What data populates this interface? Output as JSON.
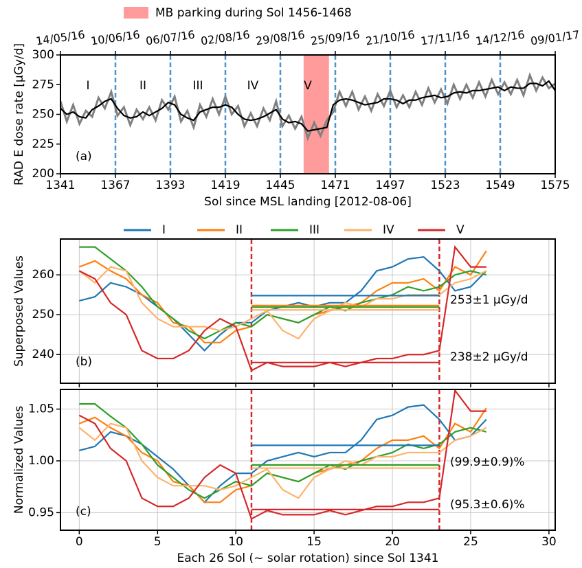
{
  "chart_data": [
    {
      "type": "line",
      "xlabel": "Sol since MSL landing [2012-08-06]",
      "ylabel": "RAD E dose rate [μGy/d]",
      "panel_label": "(a)",
      "period_labels": [
        "I",
        "II",
        "III",
        "IV",
        "V"
      ],
      "span": {
        "x": [
          1456,
          1468
        ],
        "color": "#ff9b9b",
        "label": "MB parking during Sol 1456-1468"
      },
      "vlines": [
        1367,
        1393,
        1419,
        1445,
        1471,
        1497,
        1523,
        1549
      ],
      "vline_color": "#4f94cd",
      "xlim": [
        1341,
        1575
      ],
      "xticks": [
        1341,
        1367,
        1393,
        1419,
        1445,
        1471,
        1497,
        1523,
        1549,
        1575
      ],
      "x2ticks": [
        {
          "value": 1341,
          "label": "14/05/16"
        },
        {
          "value": 1367,
          "label": "10/06/16"
        },
        {
          "value": 1393,
          "label": "06/07/16"
        },
        {
          "value": 1419,
          "label": "02/08/16"
        },
        {
          "value": 1445,
          "label": "29/08/16"
        },
        {
          "value": 1471,
          "label": "25/09/16"
        },
        {
          "value": 1497,
          "label": "21/10/16"
        },
        {
          "value": 1523,
          "label": "17/11/16"
        },
        {
          "value": 1549,
          "label": "14/12/16"
        },
        {
          "value": 1575,
          "label": "09/01/17"
        }
      ],
      "ylim": [
        200,
        300
      ],
      "yticks": [
        200,
        225,
        250,
        275,
        300
      ],
      "grid": false,
      "x": [
        1341,
        1344,
        1347,
        1350,
        1353,
        1356,
        1359,
        1362,
        1365,
        1368,
        1371,
        1374,
        1377,
        1380,
        1383,
        1386,
        1389,
        1392,
        1395,
        1398,
        1401,
        1404,
        1407,
        1410,
        1413,
        1416,
        1419,
        1422,
        1425,
        1428,
        1431,
        1434,
        1437,
        1440,
        1443,
        1446,
        1449,
        1452,
        1455,
        1458,
        1461,
        1464,
        1467,
        1470,
        1473,
        1476,
        1479,
        1482,
        1485,
        1488,
        1491,
        1494,
        1497,
        1500,
        1503,
        1506,
        1509,
        1512,
        1515,
        1518,
        1521,
        1524,
        1527,
        1530,
        1533,
        1536,
        1539,
        1542,
        1545,
        1548,
        1551,
        1554,
        1557,
        1560,
        1563,
        1566,
        1569,
        1572,
        1575
      ],
      "series": [
        {
          "color": "#808080",
          "values": [
            261,
            244,
            258,
            242,
            253,
            248,
            264,
            255,
            269,
            249,
            256,
            241,
            254,
            246,
            256,
            245,
            262,
            254,
            265,
            244,
            253,
            239,
            258,
            248,
            263,
            250,
            265,
            250,
            257,
            240,
            251,
            240,
            255,
            245,
            261,
            240,
            249,
            238,
            248,
            230,
            243,
            232,
            245,
            252,
            269,
            257,
            269,
            254,
            265,
            253,
            267,
            257,
            270,
            256,
            266,
            256,
            269,
            258,
            272,
            260,
            271,
            259,
            275,
            263,
            275,
            264,
            277,
            265,
            279,
            267,
            277,
            267,
            279,
            266,
            283,
            270,
            281,
            272,
            276
          ]
        },
        {
          "color": "#000000",
          "values": [
            255,
            250,
            252,
            248,
            247,
            254,
            257,
            261,
            263,
            255,
            249,
            247,
            248,
            252,
            249,
            252,
            255,
            260,
            258,
            250,
            247,
            245,
            252,
            254,
            256,
            256,
            258,
            256,
            250,
            246,
            245,
            246,
            248,
            251,
            254,
            246,
            243,
            244,
            242,
            236,
            237,
            238,
            239,
            258,
            262,
            263,
            262,
            260,
            258,
            259,
            260,
            263,
            263,
            262,
            259,
            262,
            262,
            264,
            265,
            266,
            264,
            265,
            268,
            269,
            268,
            270,
            270,
            271,
            272,
            273,
            270,
            273,
            272,
            272,
            276,
            276,
            274,
            278,
            270
          ]
        }
      ]
    },
    {
      "type": "line",
      "ylabel": "Superposed Values",
      "panel_label": "(b)",
      "annotations": [
        {
          "text": "253±1 μGy/d",
          "color": "#000000"
        },
        {
          "text": "238±2 μGy/d",
          "color": "#d62728"
        }
      ],
      "vlines": [
        11,
        23
      ],
      "vline_color": "#d62728",
      "xlim": [
        -1.2,
        30.4
      ],
      "xticks": [
        0,
        5,
        10,
        15,
        20,
        25,
        30
      ],
      "ylim": [
        232.8,
        269
      ],
      "yticks": [
        240,
        250,
        260
      ],
      "grid": true,
      "x": [
        0,
        1,
        2,
        3,
        4,
        5,
        6,
        7,
        8,
        9,
        10,
        11,
        12,
        13,
        14,
        15,
        16,
        17,
        18,
        19,
        20,
        21,
        22,
        23,
        24,
        25,
        26
      ],
      "series": [
        {
          "name": "I",
          "color": "#1f77b4",
          "mean": 254.8,
          "values": [
            253.5,
            254.5,
            258,
            257,
            255,
            252,
            249,
            245,
            241,
            245,
            248,
            248,
            251,
            252,
            253,
            252,
            253,
            253,
            256,
            261,
            262,
            264,
            264.5,
            261,
            256,
            257,
            261
          ]
        },
        {
          "name": "II",
          "color": "#ff7f0e",
          "mean": 252.3,
          "values": [
            262,
            263.5,
            261,
            259,
            255,
            253,
            248,
            247,
            243,
            243,
            246,
            247,
            250,
            249,
            248,
            250,
            251,
            252,
            253,
            256,
            258,
            258,
            259,
            256,
            262,
            260,
            266
          ]
        },
        {
          "name": "III",
          "color": "#2ca02c",
          "mean": 251.9,
          "values": [
            267,
            267,
            264,
            261,
            257,
            252,
            249,
            246,
            244,
            246,
            248,
            247,
            250,
            249,
            248,
            250,
            252,
            251,
            253,
            254,
            255,
            257,
            256,
            257,
            260,
            261,
            260
          ]
        },
        {
          "name": "IV",
          "color": "#fdb36b",
          "mean": 251.2,
          "values": [
            261,
            258,
            262,
            261,
            253,
            249,
            247,
            247,
            247,
            246,
            247,
            249,
            251,
            246,
            244,
            249,
            251,
            253,
            252,
            254,
            254,
            255,
            255,
            255,
            258,
            259,
            261
          ]
        },
        {
          "name": "V",
          "color": "#d62728",
          "mean": 238.0,
          "values": [
            261,
            259,
            253,
            250,
            241,
            239,
            239,
            241,
            246,
            249,
            247,
            236,
            238,
            237,
            237,
            237,
            238,
            237,
            238,
            239,
            239,
            240,
            240,
            241,
            267,
            262,
            262
          ]
        }
      ]
    },
    {
      "type": "line",
      "xlabel": "Each 26 Sol (~ solar rotation) since Sol 1341",
      "ylabel": "Normalized Values",
      "panel_label": "(c)",
      "annotations": [
        {
          "text": "(99.9±0.9)%",
          "color": "#000000"
        },
        {
          "text": "(95.3±0.6)%",
          "color": "#d62728"
        }
      ],
      "vlines": [
        11,
        23
      ],
      "vline_color": "#d62728",
      "xlim": [
        -1.2,
        30.4
      ],
      "xticks": [
        0,
        5,
        10,
        15,
        20,
        25,
        30
      ],
      "ylim": [
        0.933,
        1.069
      ],
      "yticks": [
        0.95,
        {
          "value": 1.0,
          "label": "1.00"
        },
        1.05
      ],
      "grid": true,
      "x": [
        0,
        1,
        2,
        3,
        4,
        5,
        6,
        7,
        8,
        9,
        10,
        11,
        12,
        13,
        14,
        15,
        16,
        17,
        18,
        19,
        20,
        21,
        22,
        23,
        24,
        25,
        26
      ],
      "series": [
        {
          "color": "#1f77b4",
          "mean": 1.015,
          "values": [
            1.01,
            1.014,
            1.028,
            1.024,
            1.016,
            1.004,
            0.992,
            0.976,
            0.96,
            0.976,
            0.988,
            0.988,
            1.0,
            1.004,
            1.008,
            1.004,
            1.008,
            1.008,
            1.02,
            1.04,
            1.044,
            1.052,
            1.054,
            1.04,
            1.02,
            1.024,
            1.04
          ]
        },
        {
          "color": "#ff7f0e",
          "mean": 0.996,
          "values": [
            1.036,
            1.042,
            1.032,
            1.024,
            1.008,
            1.0,
            0.98,
            0.976,
            0.96,
            0.96,
            0.972,
            0.976,
            0.988,
            0.984,
            0.98,
            0.988,
            0.992,
            0.996,
            1.0,
            1.012,
            1.02,
            1.02,
            1.024,
            1.012,
            1.036,
            1.028,
            1.051
          ]
        },
        {
          "color": "#2ca02c",
          "mean": 0.996,
          "values": [
            1.055,
            1.055,
            1.043,
            1.032,
            1.016,
            0.996,
            0.984,
            0.972,
            0.964,
            0.972,
            0.98,
            0.976,
            0.988,
            0.984,
            0.98,
            0.988,
            0.996,
            0.992,
            1.0,
            1.004,
            1.008,
            1.016,
            1.012,
            1.016,
            1.028,
            1.032,
            1.028
          ]
        },
        {
          "color": "#fdb36b",
          "mean": 0.993,
          "values": [
            1.032,
            1.02,
            1.036,
            1.032,
            1.0,
            0.984,
            0.976,
            0.976,
            0.976,
            0.972,
            0.976,
            0.984,
            0.992,
            0.972,
            0.964,
            0.984,
            0.992,
            1.0,
            0.996,
            1.004,
            1.004,
            1.008,
            1.008,
            1.008,
            1.02,
            1.024,
            1.032
          ]
        },
        {
          "color": "#d62728",
          "mean": 0.953,
          "values": [
            1.044,
            1.036,
            1.012,
            1.0,
            0.964,
            0.956,
            0.956,
            0.964,
            0.984,
            0.996,
            0.988,
            0.944,
            0.952,
            0.948,
            0.948,
            0.948,
            0.952,
            0.948,
            0.952,
            0.956,
            0.956,
            0.96,
            0.96,
            0.964,
            1.068,
            1.048,
            1.048
          ]
        }
      ]
    }
  ]
}
